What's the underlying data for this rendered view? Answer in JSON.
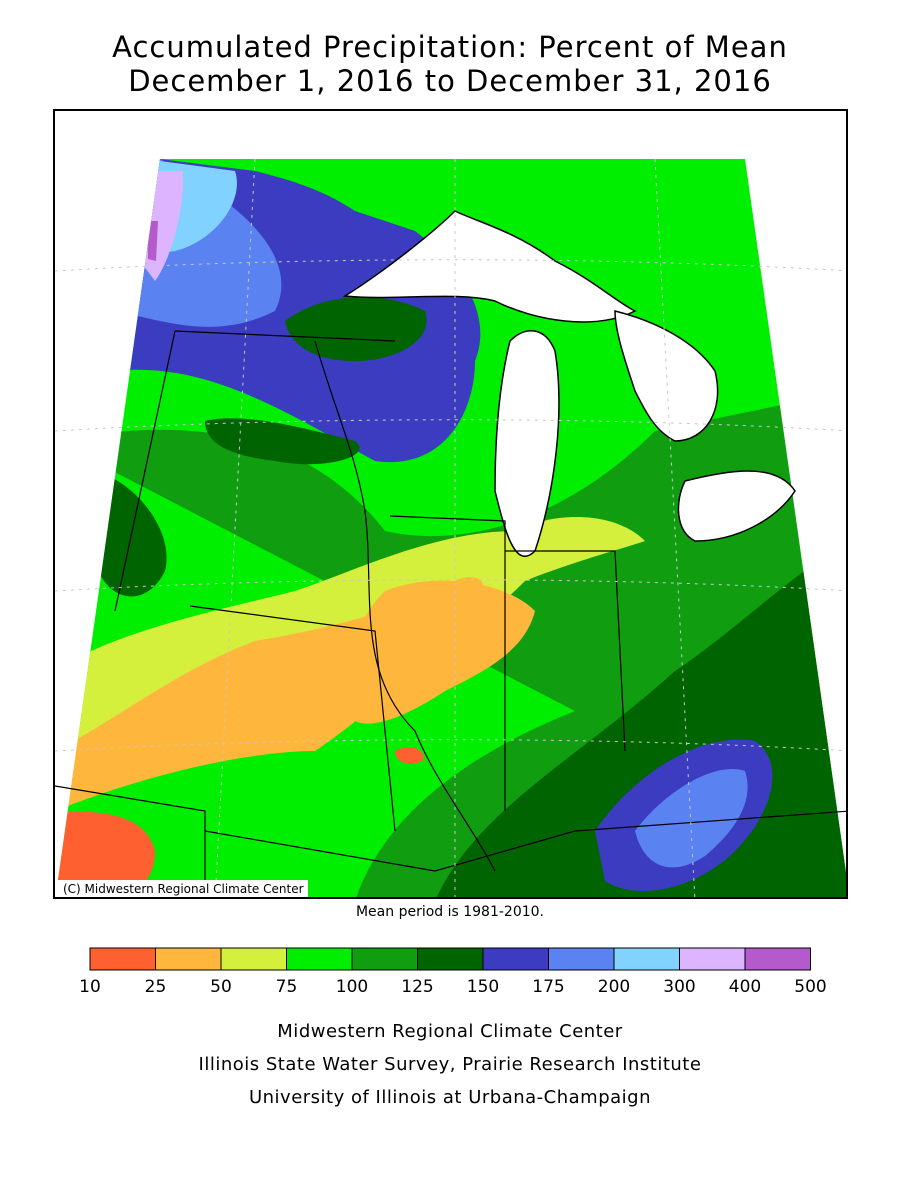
{
  "title": {
    "line1": "Accumulated Precipitation: Percent of Mean",
    "line2": "December 1, 2016 to December 31, 2016"
  },
  "map": {
    "copyright": "(C) Midwestern Regional Climate Center",
    "mean_period": "Mean period is 1981-2010.",
    "regions": [
      "Minnesota",
      "Wisconsin",
      "Michigan",
      "Iowa",
      "Illinois",
      "Indiana",
      "Ohio",
      "Missouri",
      "Kentucky"
    ]
  },
  "legend": {
    "unit": "percent of mean",
    "ticks": [
      "10",
      "25",
      "50",
      "75",
      "100",
      "125",
      "150",
      "175",
      "200",
      "300",
      "400",
      "500"
    ],
    "colors": [
      "#ff6030",
      "#ffb63c",
      "#d4f03c",
      "#00ee00",
      "#109e10",
      "#006400",
      "#3c3cc0",
      "#5a82f0",
      "#82d2ff",
      "#dcb4ff",
      "#b45acd"
    ]
  },
  "credits": {
    "line1": "Midwestern Regional Climate Center",
    "line2": "Illinois State Water Survey, Prairie Research Institute",
    "line3": "University of Illinois at Urbana-Champaign"
  }
}
